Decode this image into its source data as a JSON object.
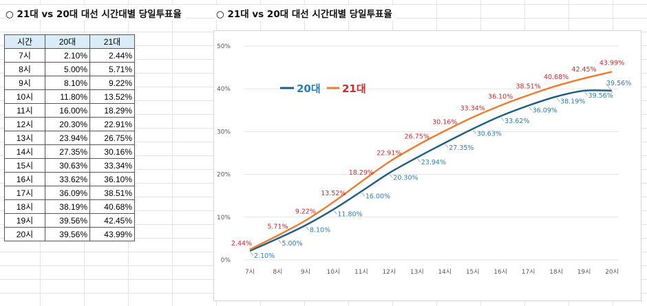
{
  "titles": {
    "left": "○ 21대 vs 20대 대선 시간대별 당일투표율",
    "right": "○ 21대 vs 20대 대선 시간대별 당일투표율"
  },
  "table": {
    "headers": [
      "시간",
      "20대",
      "21대"
    ],
    "rows": [
      [
        "7시",
        "2.10%",
        "2.44%"
      ],
      [
        "8시",
        "5.00%",
        "5.71%"
      ],
      [
        "9시",
        "8.10%",
        "9.22%"
      ],
      [
        "10시",
        "11.80%",
        "13.52%"
      ],
      [
        "11시",
        "16.00%",
        "18.29%"
      ],
      [
        "12시",
        "20.30%",
        "22.91%"
      ],
      [
        "13시",
        "23.94%",
        "26.75%"
      ],
      [
        "14시",
        "27.35%",
        "30.16%"
      ],
      [
        "15시",
        "30.63%",
        "33.34%"
      ],
      [
        "16시",
        "33.62%",
        "36.10%"
      ],
      [
        "17시",
        "36.09%",
        "38.51%"
      ],
      [
        "18시",
        "38.19%",
        "40.68%"
      ],
      [
        "19시",
        "39.56%",
        "42.45%"
      ],
      [
        "20시",
        "39.56%",
        "43.99%"
      ]
    ]
  },
  "chart_data": {
    "type": "line",
    "title": "",
    "xlabel": "",
    "ylabel": "",
    "categories": [
      "7시",
      "8시",
      "9시",
      "10시",
      "11시",
      "12시",
      "13시",
      "14시",
      "15시",
      "16시",
      "17시",
      "18시",
      "19시",
      "20시"
    ],
    "ylim": [
      0,
      50
    ],
    "yticks": [
      "0%",
      "10%",
      "20%",
      "30%",
      "40%",
      "50%"
    ],
    "grid": true,
    "legend_position": "top-left",
    "series": [
      {
        "name": "20대",
        "color": "#1f5e86",
        "label_color": "#2a7fb8",
        "values": [
          2.1,
          5.0,
          8.1,
          11.8,
          16.0,
          20.3,
          23.94,
          27.35,
          30.63,
          33.62,
          36.09,
          38.19,
          39.56,
          39.56
        ],
        "labels": [
          "2.10%",
          "5.00%",
          "8.10%",
          "11.80%",
          "16.00%",
          "20.30%",
          "23.94%",
          "27.35%",
          "30.63%",
          "33.62%",
          "36.09%",
          "38.19%",
          "39.56%",
          "39.56%"
        ]
      },
      {
        "name": "21대",
        "color": "#ef7d31",
        "label_color": "#d12a2a",
        "values": [
          2.44,
          5.71,
          9.22,
          13.52,
          18.29,
          22.91,
          26.75,
          30.16,
          33.34,
          36.1,
          38.51,
          40.68,
          42.45,
          43.99
        ],
        "labels": [
          "2.44%",
          "5.71%",
          "9.22%",
          "13.52%",
          "18.29%",
          "22.91%",
          "26.75%",
          "30.16%",
          "33.34%",
          "36.10%",
          "38.51%",
          "40.68%",
          "42.45%",
          "43.99%"
        ]
      }
    ]
  }
}
